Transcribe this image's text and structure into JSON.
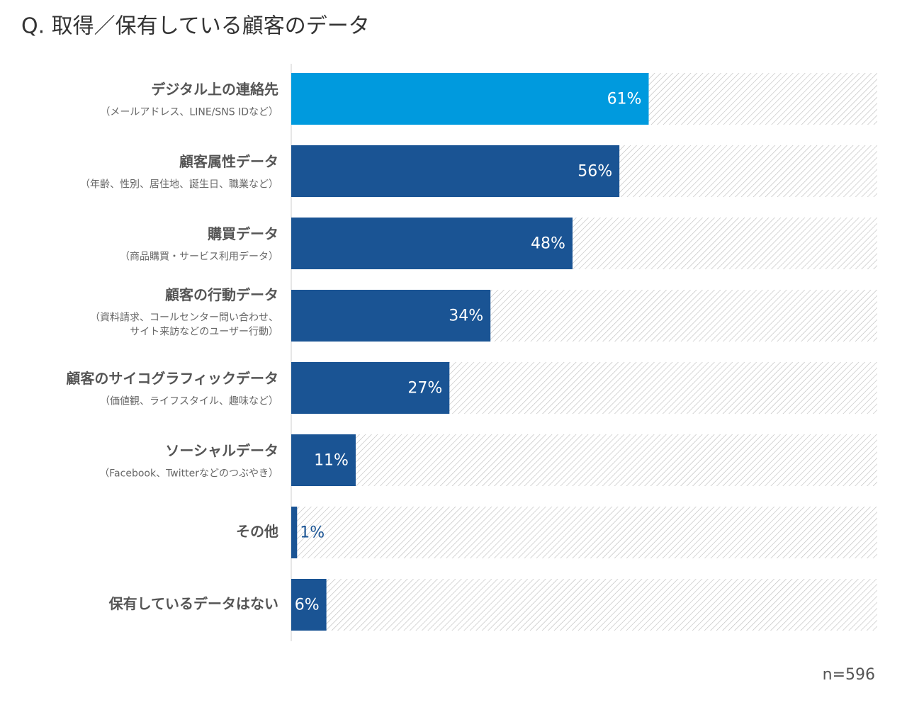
{
  "chart_data": {
    "type": "bar",
    "orientation": "horizontal",
    "title": "Q. 取得／保有している顧客のデータ",
    "categories": [
      "デジタル上の連絡先",
      "顧客属性データ",
      "購買データ",
      "顧客の行動データ",
      "顧客のサイコグラフィックデータ",
      "ソーシャルデータ",
      "その他",
      "保有しているデータはない"
    ],
    "sublabels": [
      [
        "（メールアドレス、LINE/SNS IDなど）"
      ],
      [
        "（年齢、性別、居住地、誕生日、職業など）"
      ],
      [
        "（商品購買・サービス利用データ）"
      ],
      [
        "（資料請求、コールセンター問い合わせ、",
        "サイト来訪などのユーザー行動）"
      ],
      [
        "（価値観、ライフスタイル、趣味など）"
      ],
      [
        "（Facebook、Twitterなどのつぶやき）"
      ],
      [],
      []
    ],
    "values": [
      61,
      56,
      48,
      34,
      27,
      11,
      1,
      6
    ],
    "value_labels": [
      "61%",
      "56%",
      "48%",
      "34%",
      "27%",
      "11%",
      "1%",
      "6%"
    ],
    "colors": [
      "#009ade",
      "#1a5494",
      "#1a5494",
      "#1a5494",
      "#1a5494",
      "#1a5494",
      "#1a5494",
      "#1a5494"
    ],
    "xlim": [
      0,
      100
    ],
    "note": "n=596"
  }
}
